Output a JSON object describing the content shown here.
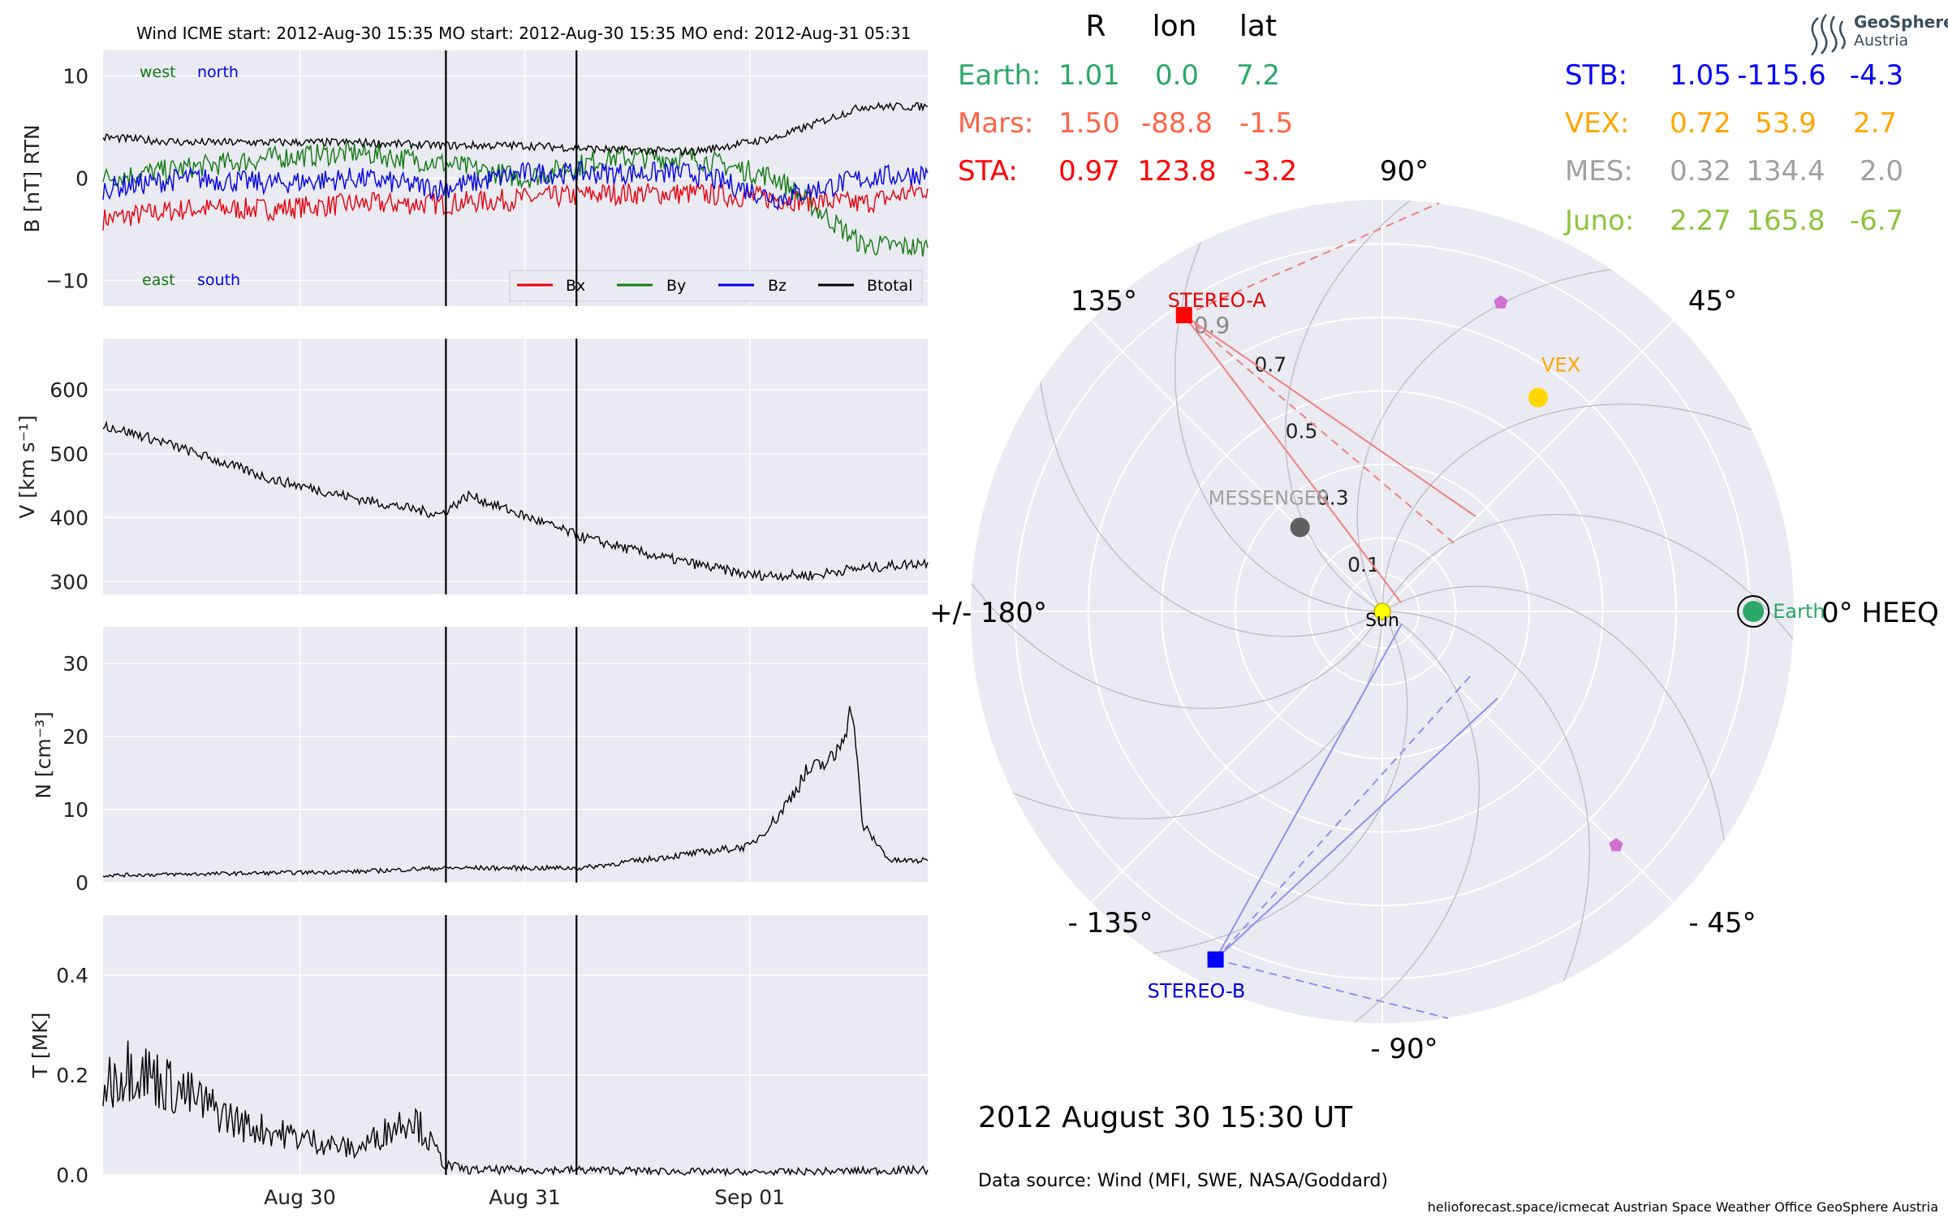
{
  "header": {
    "title": "Wind    ICME start: 2012-Aug-30 15:35   MO start: 2012-Aug-30 15:35   MO end: 2012-Aug-31 05:31",
    "logo_text_1": "GeoSphere",
    "logo_text_2": "Austria"
  },
  "colors": {
    "panel_bg": "#eaeaf2",
    "grid": "#ffffff",
    "bx": "#e8000b",
    "by": "#107a10",
    "bz": "#0000e6",
    "bt": "#000000",
    "earth": "#2ca868",
    "mars": "#ff6347",
    "sta": "#ff0000",
    "stb": "#0000ff",
    "vex": "#ffa500",
    "mes": "#a0a0a0",
    "juno": "#8cc43c"
  },
  "chart_data": [
    {
      "type": "line",
      "ylabel": "B [nT] RTN",
      "ylim": [
        -12.5,
        12.5
      ],
      "yticks": [
        "10",
        "0",
        "−10"
      ],
      "x_start": "2012-08-29 03:00",
      "x_end": "2012-09-01 19:00",
      "annotations": {
        "west": "west",
        "north": "north",
        "east": "east",
        "south": "south"
      },
      "legend": [
        "Bx",
        "By",
        "Bz",
        "Btotal"
      ],
      "series": [
        {
          "name": "Bx",
          "x": [
            "2012-08-29 03:00",
            "2012-08-29 12:00",
            "2012-08-29 21:00",
            "2012-08-30 06:00",
            "2012-08-30 15:00",
            "2012-08-31 00:00",
            "2012-08-31 09:00",
            "2012-08-31 18:00",
            "2012-09-01 03:00",
            "2012-09-01 12:00",
            "2012-09-01 19:00"
          ],
          "values": [
            -4,
            -3,
            -3,
            -2.5,
            -2.5,
            -2,
            -1.5,
            -1.5,
            -2,
            -2.5,
            -1
          ]
        },
        {
          "name": "By",
          "x": [
            "2012-08-29 03:00",
            "2012-08-29 12:00",
            "2012-08-29 21:00",
            "2012-08-30 06:00",
            "2012-08-30 15:00",
            "2012-08-31 00:00",
            "2012-08-31 09:00",
            "2012-08-31 18:00",
            "2012-09-01 03:00",
            "2012-09-01 12:00",
            "2012-09-01 19:00"
          ],
          "values": [
            0,
            1,
            2,
            2.5,
            1.5,
            0,
            2,
            2,
            0,
            -6.5,
            -6.8
          ]
        },
        {
          "name": "Bz",
          "x": [
            "2012-08-29 03:00",
            "2012-08-29 12:00",
            "2012-08-29 21:00",
            "2012-08-30 06:00",
            "2012-08-30 15:00",
            "2012-08-31 00:00",
            "2012-08-31 09:00",
            "2012-08-31 18:00",
            "2012-09-01 03:00",
            "2012-09-01 12:00",
            "2012-09-01 19:00"
          ],
          "values": [
            -1,
            0,
            -0.5,
            0,
            -1,
            0.5,
            0.5,
            0.5,
            -2,
            0,
            0.5
          ]
        },
        {
          "name": "Btotal",
          "x": [
            "2012-08-29 03:00",
            "2012-08-29 12:00",
            "2012-08-29 21:00",
            "2012-08-30 06:00",
            "2012-08-30 15:00",
            "2012-08-31 00:00",
            "2012-08-31 09:00",
            "2012-08-31 18:00",
            "2012-09-01 03:00",
            "2012-09-01 12:00",
            "2012-09-01 19:00"
          ],
          "values": [
            4,
            3.5,
            3.5,
            3.5,
            3.2,
            3.2,
            2.8,
            2.6,
            4,
            7,
            7
          ]
        }
      ]
    },
    {
      "type": "line",
      "ylabel": "V [km s⁻¹]",
      "ylim": [
        280,
        680
      ],
      "yticks": [
        "600",
        "500",
        "400",
        "300"
      ],
      "series": [
        {
          "name": "V",
          "x": [
            "2012-08-29 03:00",
            "2012-08-29 09:00",
            "2012-08-29 21:00",
            "2012-08-30 06:00",
            "2012-08-30 15:00",
            "2012-08-30 18:00",
            "2012-08-31 06:00",
            "2012-08-31 14:00",
            "2012-09-01 00:00",
            "2012-09-01 07:00",
            "2012-09-01 10:00",
            "2012-09-01 19:00"
          ],
          "values": [
            545,
            520,
            460,
            430,
            405,
            435,
            370,
            340,
            310,
            310,
            318,
            330
          ]
        }
      ]
    },
    {
      "type": "line",
      "ylabel": "N [cm⁻³]",
      "ylim": [
        0,
        35
      ],
      "yticks": [
        "30",
        "20",
        "10",
        "0"
      ],
      "series": [
        {
          "name": "N",
          "x": [
            "2012-08-29 03:00",
            "2012-08-30 06:00",
            "2012-08-30 15:00",
            "2012-08-31 06:00",
            "2012-08-31 18:00",
            "2012-09-01 00:00",
            "2012-09-01 03:00",
            "2012-09-01 06:00",
            "2012-09-01 09:00",
            "2012-09-01 11:00",
            "2012-09-01 12:00",
            "2012-09-01 15:00",
            "2012-09-01 19:00"
          ],
          "values": [
            1,
            1.5,
            2,
            2,
            4,
            5,
            9,
            15,
            17,
            24,
            8,
            3,
            3
          ]
        }
      ]
    },
    {
      "type": "line",
      "ylabel": "T [MK]",
      "ylim": [
        0,
        0.52
      ],
      "yticks": [
        "0.4",
        "0.2",
        "0.0"
      ],
      "xticks": [
        "Aug 30",
        "Aug 31",
        "Sep 01"
      ],
      "series": [
        {
          "name": "T",
          "x": [
            "2012-08-29 03:00",
            "2012-08-29 06:00",
            "2012-08-29 18:00",
            "2012-08-30 06:00",
            "2012-08-30 12:00",
            "2012-08-30 15:30",
            "2012-08-30 18:00",
            "2012-08-31 06:00",
            "2012-09-01 00:00",
            "2012-09-01 19:00"
          ],
          "values": [
            0.18,
            0.22,
            0.1,
            0.05,
            0.12,
            0.02,
            0.01,
            0.01,
            0.005,
            0.01
          ]
        }
      ]
    },
    {
      "type": "scatter",
      "projection": "polar",
      "angle_labels": [
        "90°",
        "45°",
        "0° HEEQ",
        "- 45°",
        "- 90°",
        "- 135°",
        "+/- 180°",
        "135°"
      ],
      "radial_labels": [
        "0.1",
        "0.3",
        "0.5",
        "0.7",
        "0.9"
      ],
      "r_max": 1.12,
      "points": [
        {
          "label": "Sun",
          "r": 0,
          "lon": 0
        },
        {
          "label": "Earth",
          "r": 1.01,
          "lon": 0.0
        },
        {
          "label": "STEREO-A",
          "r": 0.97,
          "lon": 123.8
        },
        {
          "label": "STEREO-B",
          "r": 1.05,
          "lon": -115.6
        },
        {
          "label": "VEX",
          "r": 0.72,
          "lon": 53.9
        },
        {
          "label": "MESSENGER",
          "r": 0.32,
          "lon": 134.4
        },
        {
          "label": "",
          "r": 0.9,
          "lon": 69
        },
        {
          "label": "",
          "r": 0.9,
          "lon": -45
        }
      ],
      "position_table": {
        "headers": [
          "R",
          "lon",
          "lat"
        ],
        "rows": [
          {
            "name": "Earth:",
            "r": "1.01",
            "lon": "0.0",
            "lat": "7.2"
          },
          {
            "name": "Mars:",
            "r": "1.50",
            "lon": "-88.8",
            "lat": "-1.5"
          },
          {
            "name": "STA:",
            "r": "0.97",
            "lon": "123.8",
            "lat": "-3.2"
          },
          {
            "name": "STB:",
            "r": "1.05",
            "lon": "-115.6",
            "lat": "-4.3"
          },
          {
            "name": "VEX:",
            "r": "0.72",
            "lon": "53.9",
            "lat": "2.7"
          },
          {
            "name": "MES:",
            "r": "0.32",
            "lon": "134.4",
            "lat": "2.0"
          },
          {
            "name": "Juno:",
            "r": "2.27",
            "lon": "165.8",
            "lat": "-6.7"
          }
        ]
      }
    }
  ],
  "footer": {
    "date": "2012 August 30  15:30 UT",
    "source": "Data source: Wind (MFI, SWE, NASA/Goddard)",
    "credit": "helioforecast.space/icmecat   Austrian Space Weather Office   GeoSphere Austria"
  }
}
